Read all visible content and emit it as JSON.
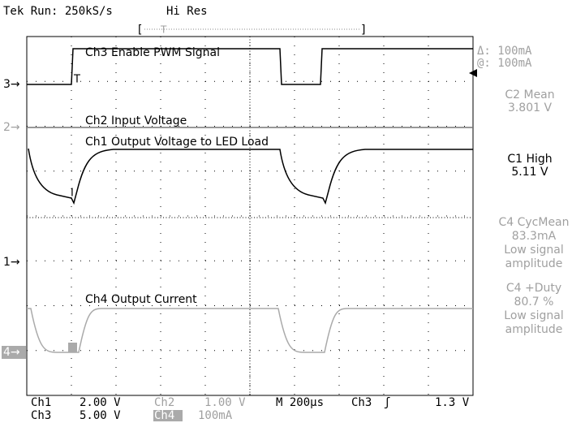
{
  "header": {
    "status": "Tek Run: 250kS/s",
    "mode": "Hi Res"
  },
  "traces": {
    "ch3": "Ch3 Enable PWM Signal",
    "ch2": "Ch2 Input Voltage",
    "ch1": "Ch1 Output Voltage to LED Load",
    "ch4": "Ch4 Output Current"
  },
  "markers": {
    "ch3": "3→",
    "ch2": "2→",
    "ch1": "1→",
    "ch4": "4→"
  },
  "readouts": {
    "delta": "Δ: 100mA",
    "at": "@: 100mA",
    "c2_mean": {
      "label": "C2 Mean",
      "value": "3.801 V"
    },
    "c1_high": {
      "label": "C1 High",
      "value": "5.11 V"
    },
    "c4_cycmean": {
      "label": "C4 CycMean",
      "value": "83.3mA",
      "note1": "Low signal",
      "note2": "amplitude"
    },
    "c4_duty": {
      "label": "C4 +Duty",
      "value": "80.7 %",
      "note1": "Low signal",
      "note2": "amplitude"
    }
  },
  "footer": {
    "ch1": "Ch1",
    "ch1_scale": "2.00 V",
    "ch2": "Ch2",
    "ch2_scale": "1.00 V",
    "timebase": "M 200µs",
    "trig_ch": "Ch3",
    "trig_level": "1.3 V",
    "ch3": "Ch3",
    "ch3_scale": "5.00 V",
    "ch4": "Ch4",
    "ch4_scale": "100mA"
  }
}
